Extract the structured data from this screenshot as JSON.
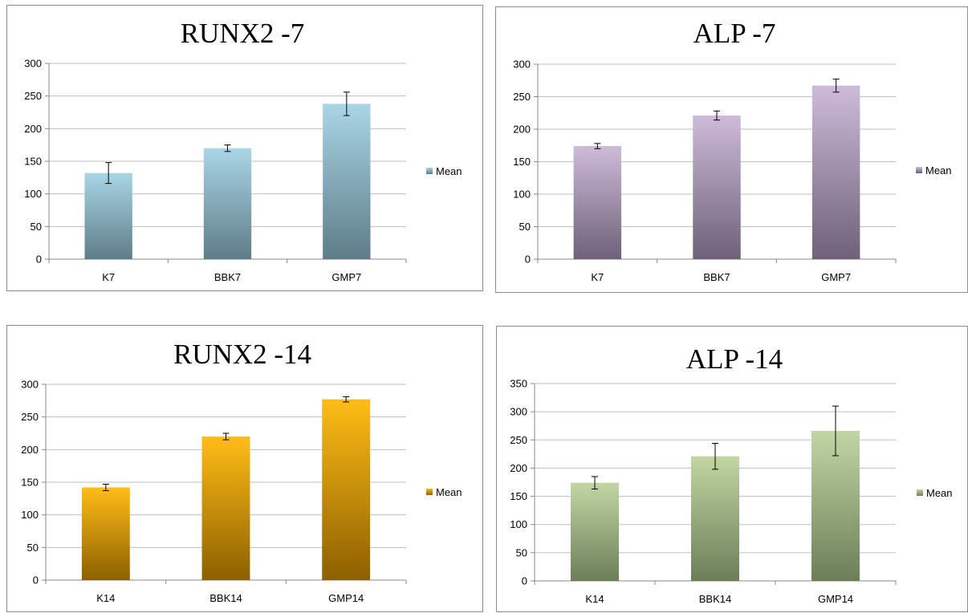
{
  "chart_data": [
    {
      "type": "bar",
      "title": "RUNX2 -7",
      "categories": [
        "K7",
        "BBK7",
        "GMP7"
      ],
      "series": [
        {
          "name": "Mean",
          "values": [
            132,
            170,
            238
          ],
          "errors": [
            16,
            5,
            18
          ]
        }
      ],
      "ylim": [
        0,
        300
      ],
      "yticks": [
        0,
        50,
        100,
        150,
        200,
        250,
        300
      ],
      "grid": true,
      "legend_position": "right",
      "colors": {
        "top": "#a9d6e6",
        "bottom": "#5f7c88"
      }
    },
    {
      "type": "bar",
      "title": "ALP -7",
      "categories": [
        "K7",
        "BBK7",
        "GMP7"
      ],
      "series": [
        {
          "name": "Mean",
          "values": [
            174,
            221,
            267
          ],
          "errors": [
            4,
            7,
            10
          ]
        }
      ],
      "ylim": [
        0,
        300
      ],
      "yticks": [
        0,
        50,
        100,
        150,
        200,
        250,
        300
      ],
      "grid": true,
      "legend_position": "right",
      "colors": {
        "top": "#cdbbda",
        "bottom": "#6e6178"
      }
    },
    {
      "type": "bar",
      "title": "RUNX2 -14",
      "categories": [
        "K14",
        "BBK14",
        "GMP14"
      ],
      "series": [
        {
          "name": "Mean",
          "values": [
            142,
            220,
            277
          ],
          "errors": [
            5,
            5,
            4
          ]
        }
      ],
      "ylim": [
        0,
        300
      ],
      "yticks": [
        0,
        50,
        100,
        150,
        200,
        250,
        300
      ],
      "grid": true,
      "legend_position": "right",
      "colors": {
        "top": "#ffbd17",
        "bottom": "#8c6000"
      }
    },
    {
      "type": "bar",
      "title": "ALP -14",
      "categories": [
        "K14",
        "BBK14",
        "GMP14"
      ],
      "series": [
        {
          "name": "Mean",
          "values": [
            174,
            221,
            266
          ],
          "errors": [
            11,
            23,
            44
          ]
        }
      ],
      "ylim": [
        0,
        350
      ],
      "yticks": [
        0,
        50,
        100,
        150,
        200,
        250,
        300,
        350
      ],
      "grid": true,
      "legend_position": "right",
      "colors": {
        "top": "#c2d6a4",
        "bottom": "#6c7e58"
      }
    }
  ]
}
